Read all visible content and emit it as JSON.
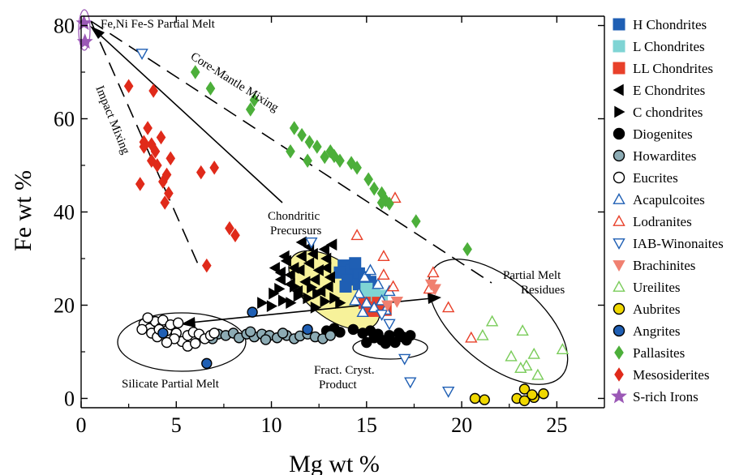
{
  "chart_data": {
    "type": "scatter",
    "xlabel": "Mg wt %",
    "ylabel": "Fe wt %",
    "xlim": [
      0,
      27.5
    ],
    "ylim": [
      -2,
      82
    ],
    "xticks": [
      0,
      5,
      10,
      15,
      20,
      25
    ],
    "yticks": [
      0,
      20,
      40,
      60,
      80
    ],
    "xtick_labels": [
      "0",
      "5",
      "10",
      "15",
      "20",
      "25"
    ],
    "ytick_labels": [
      "0",
      "20",
      "40",
      "60",
      "80"
    ],
    "legend_position": "right",
    "series": [
      {
        "name": "H Chondrites",
        "marker": "square",
        "color": "#1f5fb4",
        "filled": true,
        "points": [
          [
            13.8,
            28.5
          ],
          [
            14.2,
            27.5
          ],
          [
            14.6,
            26.8
          ],
          [
            13.6,
            27.0
          ],
          [
            14.0,
            25.5
          ],
          [
            14.6,
            24.5
          ],
          [
            13.9,
            24.0
          ],
          [
            14.4,
            29.0
          ],
          [
            14.9,
            26.0
          ],
          [
            15.2,
            25.0
          ]
        ]
      },
      {
        "name": "L Chondrites",
        "marker": "square",
        "color": "#7fd4d4",
        "filled": true,
        "points": [
          [
            15.0,
            23.5
          ],
          [
            15.4,
            22.5
          ],
          [
            15.8,
            22.0
          ],
          [
            15.3,
            21.0
          ],
          [
            15.7,
            21.5
          ],
          [
            15.0,
            22.2
          ]
        ]
      },
      {
        "name": "LL Chondrites",
        "marker": "square",
        "color": "#e8402a",
        "filled": true,
        "points": [
          [
            14.9,
            20.5
          ],
          [
            15.3,
            19.5
          ],
          [
            15.7,
            19.5
          ],
          [
            15.1,
            18.8
          ],
          [
            15.5,
            18.8
          ],
          [
            16.0,
            19.0
          ],
          [
            15.6,
            20.5
          ]
        ]
      },
      {
        "name": "E Chondrites",
        "marker": "tri-left",
        "color": "#000000",
        "filled": true,
        "points": [
          [
            10.5,
            25.5
          ],
          [
            11.0,
            26.5
          ],
          [
            11.5,
            27.5
          ],
          [
            12.0,
            29.0
          ],
          [
            11.2,
            28.0
          ],
          [
            10.8,
            29.5
          ],
          [
            11.6,
            30.5
          ],
          [
            12.2,
            31.0
          ],
          [
            12.5,
            27.5
          ],
          [
            12.9,
            28.0
          ],
          [
            13.1,
            26.0
          ],
          [
            11.0,
            24.5
          ],
          [
            10.5,
            27.0
          ],
          [
            11.8,
            25.0
          ],
          [
            12.3,
            25.5
          ],
          [
            13.0,
            24.0
          ],
          [
            12.6,
            23.0
          ],
          [
            11.4,
            23.0
          ],
          [
            10.2,
            28.0
          ],
          [
            12.0,
            32.5
          ],
          [
            12.8,
            32.0
          ],
          [
            13.2,
            33.0
          ],
          [
            11.6,
            33.5
          ],
          [
            10.7,
            30.5
          ],
          [
            12.9,
            30.0
          ]
        ]
      },
      {
        "name": "C chondrites",
        "marker": "tri-right",
        "color": "#000000",
        "filled": true,
        "points": [
          [
            9.5,
            20.5
          ],
          [
            10.1,
            22.5
          ],
          [
            10.6,
            21.0
          ],
          [
            11.0,
            20.5
          ],
          [
            11.4,
            22.0
          ],
          [
            11.9,
            21.5
          ],
          [
            12.4,
            22.5
          ],
          [
            12.8,
            20.8
          ],
          [
            13.3,
            21.5
          ],
          [
            13.6,
            20.5
          ],
          [
            10.4,
            23.5
          ],
          [
            11.2,
            24.0
          ],
          [
            12.1,
            23.8
          ],
          [
            10.0,
            19.8
          ],
          [
            12.3,
            19.5
          ]
        ]
      },
      {
        "name": "Diogenites",
        "marker": "circle",
        "color": "#000000",
        "filled": true,
        "points": [
          [
            12.9,
            14.5
          ],
          [
            13.3,
            15.0
          ],
          [
            13.6,
            14.2
          ],
          [
            14.3,
            14.8
          ],
          [
            14.8,
            14.0
          ],
          [
            15.2,
            14.5
          ],
          [
            15.4,
            13.0
          ],
          [
            15.8,
            12.5
          ],
          [
            16.2,
            13.5
          ],
          [
            16.5,
            12.0
          ],
          [
            16.9,
            13.2
          ],
          [
            17.1,
            12.5
          ],
          [
            16.0,
            11.8
          ],
          [
            15.6,
            13.8
          ],
          [
            16.7,
            14.0
          ],
          [
            15.0,
            12.0
          ],
          [
            17.3,
            13.5
          ]
        ]
      },
      {
        "name": "Howardites",
        "marker": "circle",
        "color": "#8cabb4",
        "filled": true,
        "points": [
          [
            7.2,
            13.8
          ],
          [
            7.6,
            13.5
          ],
          [
            8.0,
            14.0
          ],
          [
            8.3,
            13.0
          ],
          [
            8.7,
            13.8
          ],
          [
            9.1,
            13.2
          ],
          [
            9.5,
            13.8
          ],
          [
            9.9,
            13.5
          ],
          [
            10.3,
            13.0
          ],
          [
            10.8,
            13.5
          ],
          [
            11.2,
            12.8
          ],
          [
            11.5,
            13.4
          ],
          [
            11.9,
            13.8
          ],
          [
            12.3,
            13.2
          ],
          [
            12.7,
            12.8
          ],
          [
            13.1,
            13.5
          ],
          [
            10.6,
            14.0
          ],
          [
            9.7,
            12.6
          ],
          [
            8.9,
            14.3
          ],
          [
            6.9,
            12.8
          ]
        ]
      },
      {
        "name": "Eucrites",
        "marker": "circle",
        "color": "#000000",
        "filled": false,
        "points": [
          [
            3.3,
            16.0
          ],
          [
            3.6,
            15.0
          ],
          [
            3.9,
            16.5
          ],
          [
            4.2,
            15.2
          ],
          [
            4.5,
            14.5
          ],
          [
            3.7,
            14.0
          ],
          [
            4.0,
            13.2
          ],
          [
            4.3,
            16.8
          ],
          [
            4.7,
            15.8
          ],
          [
            5.0,
            14.0
          ],
          [
            5.3,
            12.2
          ],
          [
            5.6,
            13.5
          ],
          [
            5.9,
            14.2
          ],
          [
            6.2,
            13.8
          ],
          [
            6.5,
            12.8
          ],
          [
            6.8,
            13.5
          ],
          [
            4.1,
            14.8
          ],
          [
            4.9,
            12.8
          ],
          [
            5.6,
            11.2
          ],
          [
            6.0,
            11.8
          ],
          [
            3.5,
            17.3
          ],
          [
            3.2,
            14.8
          ],
          [
            5.1,
            16.2
          ],
          [
            7.0,
            14.0
          ],
          [
            4.5,
            12.0
          ]
        ]
      },
      {
        "name": "Acapulcoites",
        "marker": "tri-up",
        "color": "#1f5fb4",
        "filled": false,
        "points": [
          [
            14.6,
            22.5
          ],
          [
            15.0,
            20.5
          ],
          [
            15.4,
            19.5
          ],
          [
            15.8,
            21.0
          ],
          [
            16.2,
            23.0
          ],
          [
            14.8,
            18.5
          ],
          [
            15.6,
            24.5
          ],
          [
            14.4,
            21.0
          ],
          [
            16.0,
            19.0
          ],
          [
            14.9,
            26.0
          ],
          [
            15.2,
            27.5
          ]
        ]
      },
      {
        "name": "Lodranites",
        "marker": "tri-up",
        "color": "#e8402a",
        "filled": false,
        "points": [
          [
            14.5,
            35.0
          ],
          [
            15.9,
            30.5
          ],
          [
            16.5,
            43.0
          ],
          [
            15.9,
            26.5
          ],
          [
            16.4,
            24.0
          ],
          [
            18.5,
            27.0
          ],
          [
            18.3,
            23.5
          ],
          [
            19.3,
            19.5
          ],
          [
            20.5,
            13.0
          ]
        ]
      },
      {
        "name": "IAB-Winonaites",
        "marker": "tri-down",
        "color": "#1f5fb4",
        "filled": false,
        "points": [
          [
            3.2,
            74.0
          ],
          [
            12.1,
            33.5
          ],
          [
            16.2,
            16.0
          ],
          [
            17.0,
            8.5
          ],
          [
            17.3,
            3.5
          ],
          [
            19.3,
            1.5
          ],
          [
            15.8,
            18.0
          ]
        ]
      },
      {
        "name": "Brachinites",
        "marker": "tri-down",
        "color": "#f08070",
        "filled": true,
        "points": [
          [
            16.1,
            20.0
          ],
          [
            16.6,
            20.8
          ],
          [
            18.6,
            23.5
          ],
          [
            18.4,
            24.5
          ]
        ]
      },
      {
        "name": "Ureilites",
        "marker": "tri-up",
        "color": "#7acc5a",
        "filled": false,
        "points": [
          [
            21.1,
            13.5
          ],
          [
            21.6,
            16.5
          ],
          [
            22.6,
            9.0
          ],
          [
            23.2,
            14.5
          ],
          [
            23.4,
            7.0
          ],
          [
            23.8,
            9.5
          ],
          [
            24.0,
            5.0
          ],
          [
            25.3,
            10.5
          ],
          [
            23.1,
            6.5
          ]
        ]
      },
      {
        "name": "Aubrites",
        "marker": "circle",
        "color": "#f0d800",
        "filled": true,
        "points": [
          [
            20.7,
            0.0
          ],
          [
            21.2,
            -0.3
          ],
          [
            22.9,
            0.0
          ],
          [
            23.3,
            -0.5
          ],
          [
            23.8,
            0.2
          ],
          [
            24.3,
            1.0
          ],
          [
            23.3,
            2.0
          ],
          [
            23.7,
            0.8
          ]
        ]
      },
      {
        "name": "Angrites",
        "marker": "circle",
        "color": "#1f5fb4",
        "filled": true,
        "points": [
          [
            4.3,
            14.0
          ],
          [
            6.6,
            7.5
          ],
          [
            9.0,
            18.5
          ],
          [
            11.9,
            14.8
          ]
        ]
      },
      {
        "name": "Pallasites",
        "marker": "diamond",
        "color": "#4caf3a",
        "filled": true,
        "points": [
          [
            6.0,
            70.0
          ],
          [
            6.8,
            66.5
          ],
          [
            8.9,
            62.0
          ],
          [
            9.1,
            64.0
          ],
          [
            11.0,
            53.0
          ],
          [
            11.2,
            58.0
          ],
          [
            11.6,
            56.5
          ],
          [
            11.9,
            51.0
          ],
          [
            12.0,
            55.0
          ],
          [
            12.4,
            54.0
          ],
          [
            12.8,
            51.8
          ],
          [
            13.1,
            53.0
          ],
          [
            13.3,
            52.0
          ],
          [
            13.6,
            51.0
          ],
          [
            14.2,
            50.5
          ],
          [
            14.5,
            49.5
          ],
          [
            15.1,
            47.0
          ],
          [
            15.4,
            45.0
          ],
          [
            15.8,
            44.0
          ],
          [
            16.0,
            42.5
          ],
          [
            16.2,
            41.8
          ],
          [
            17.6,
            38.0
          ],
          [
            15.8,
            42.0
          ],
          [
            20.3,
            32.0
          ]
        ]
      },
      {
        "name": "Mesosiderites",
        "marker": "diamond",
        "color": "#e02a1a",
        "filled": true,
        "points": [
          [
            2.5,
            67.0
          ],
          [
            3.3,
            55.0
          ],
          [
            3.5,
            58.0
          ],
          [
            3.7,
            54.5
          ],
          [
            3.9,
            53.0
          ],
          [
            3.7,
            51.0
          ],
          [
            3.8,
            66.0
          ],
          [
            4.2,
            56.0
          ],
          [
            3.3,
            54.0
          ],
          [
            4.0,
            50.0
          ],
          [
            4.5,
            48.0
          ],
          [
            4.7,
            51.5
          ],
          [
            4.3,
            46.5
          ],
          [
            3.1,
            46.0
          ],
          [
            4.4,
            42.0
          ],
          [
            4.6,
            44.0
          ],
          [
            6.3,
            48.5
          ],
          [
            7.0,
            49.5
          ],
          [
            6.6,
            28.5
          ],
          [
            7.8,
            36.5
          ],
          [
            8.1,
            35.0
          ]
        ]
      },
      {
        "name": "S-rich Irons",
        "marker": "star",
        "color": "#9b59b6",
        "filled": true,
        "points": [
          [
            0.15,
            80.5
          ],
          [
            0.2,
            76.5
          ]
        ]
      }
    ],
    "annotations": [
      {
        "text": "Fe,Ni Fe-S Partial Melt"
      },
      {
        "text": "Core-Mantle Mixing"
      },
      {
        "text": "Impact Mixing"
      },
      {
        "text": "Chondritic"
      },
      {
        "text": "Precursurs"
      },
      {
        "text": "Partial Melt"
      },
      {
        "text": "Residues"
      },
      {
        "text": "Silicate Partial Melt"
      },
      {
        "text": "Fract. Cryst."
      },
      {
        "text": "Product"
      }
    ]
  }
}
